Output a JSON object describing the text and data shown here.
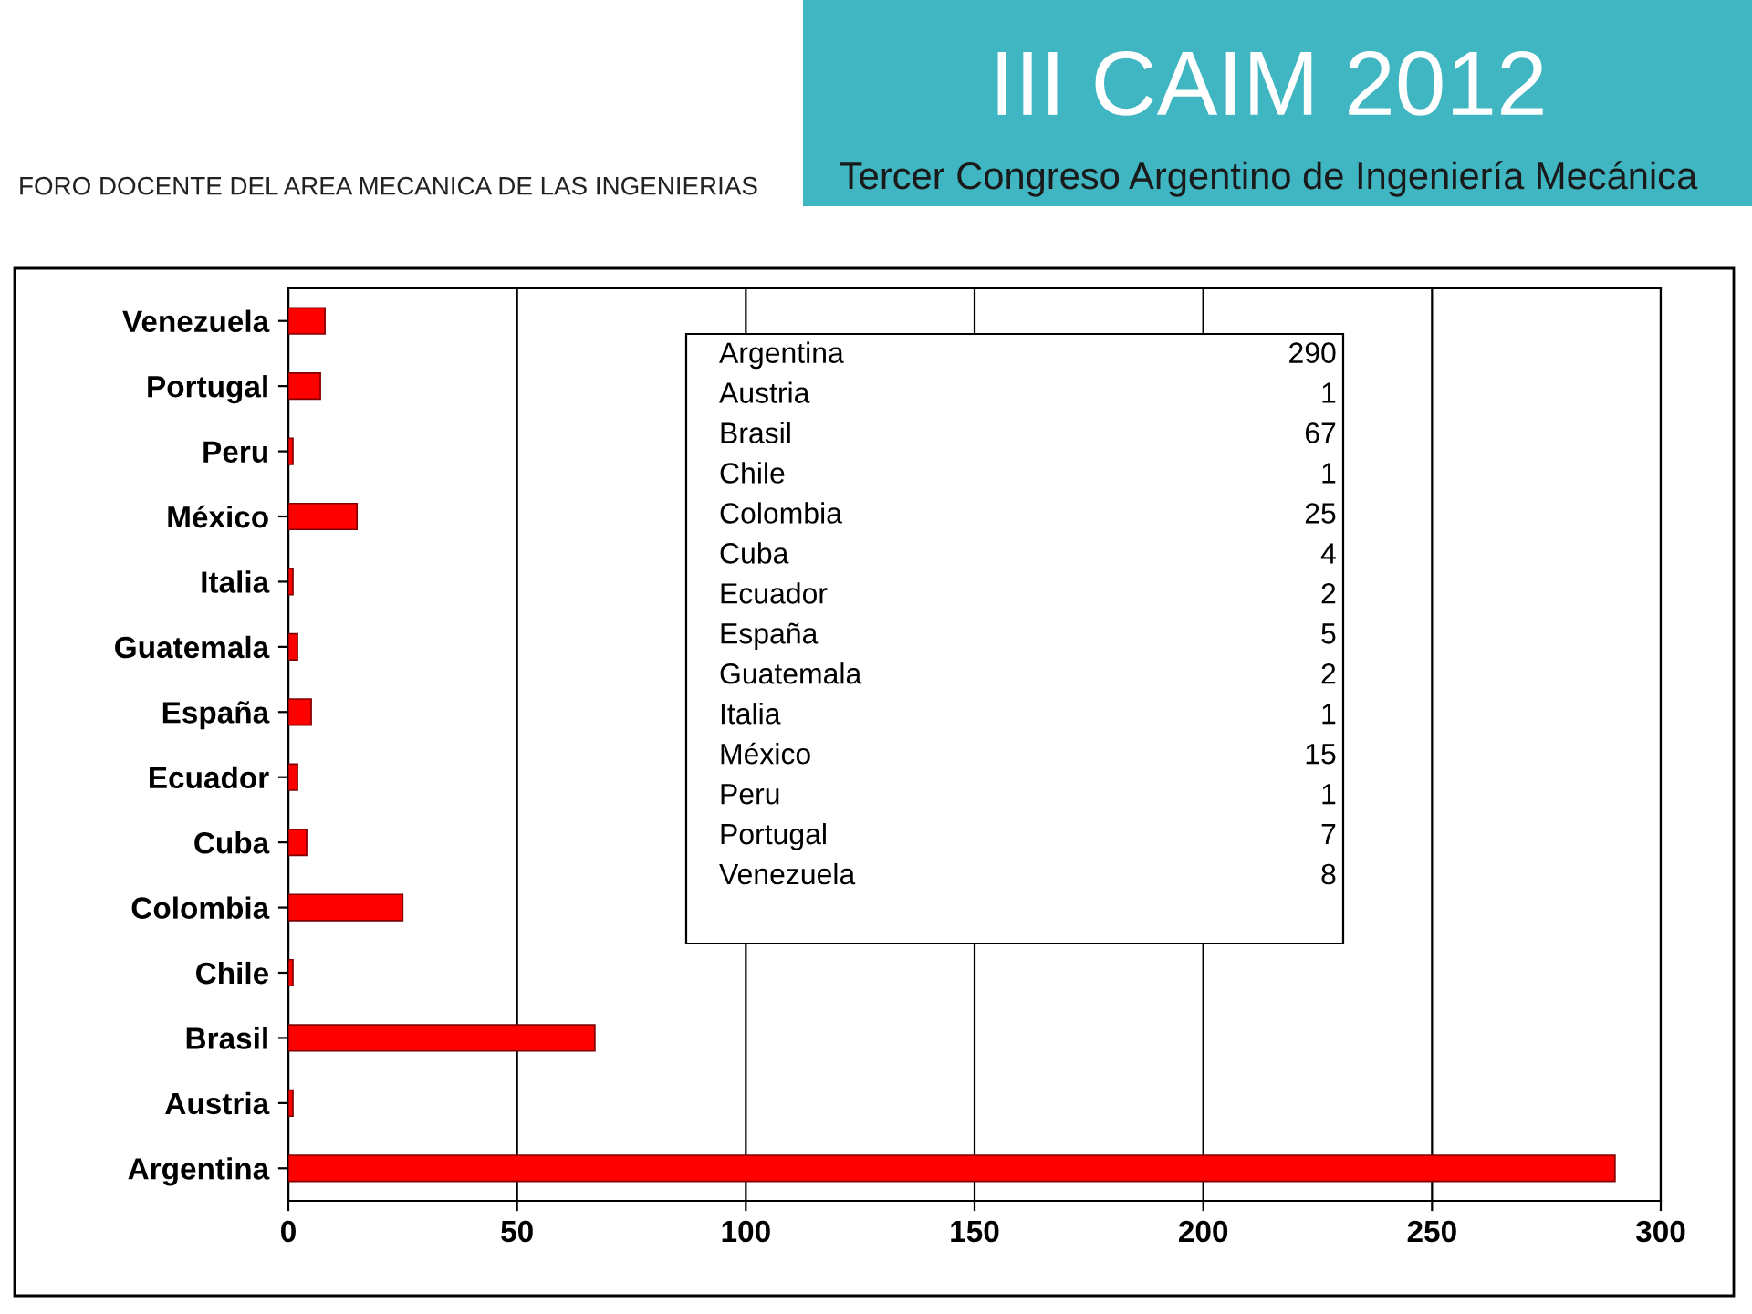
{
  "chart_data": [
    {
      "type": "bar",
      "orientation": "horizontal",
      "annotations": [
        "FORO DOCENTE DEL AREA MECANICA DE LAS INGENIERIAS",
        "III CAIM 2012",
        "Tercer Congreso Argentino de Ingeniería Mecánica"
      ],
      "categories": [
        "Venezuela",
        "Portugal",
        "Peru",
        "México",
        "Italia",
        "Guatemala",
        "España",
        "Ecuador",
        "Cuba",
        "Colombia",
        "Chile",
        "Brasil",
        "Austria",
        "Argentina"
      ],
      "values": [
        8,
        7,
        1,
        15,
        1,
        2,
        5,
        2,
        4,
        25,
        1,
        67,
        1,
        290
      ],
      "color": "#ff0000",
      "xlim": [
        0,
        300
      ],
      "xticks": [
        0,
        50,
        100,
        150,
        200,
        250,
        300
      ],
      "grid": "x"
    },
    {
      "type": "other",
      "categories": [
        "Argentina",
        "Austria",
        "Brasil",
        "Chile",
        "Colombia",
        "Cuba",
        "Ecuador",
        "España",
        "Guatemala",
        "Italia",
        "México",
        "Peru",
        "Portugal",
        "Venezuela"
      ],
      "values": [
        290,
        1,
        67,
        1,
        25,
        4,
        2,
        5,
        2,
        1,
        15,
        1,
        7,
        8
      ],
      "data_labels": true
    }
  ]
}
